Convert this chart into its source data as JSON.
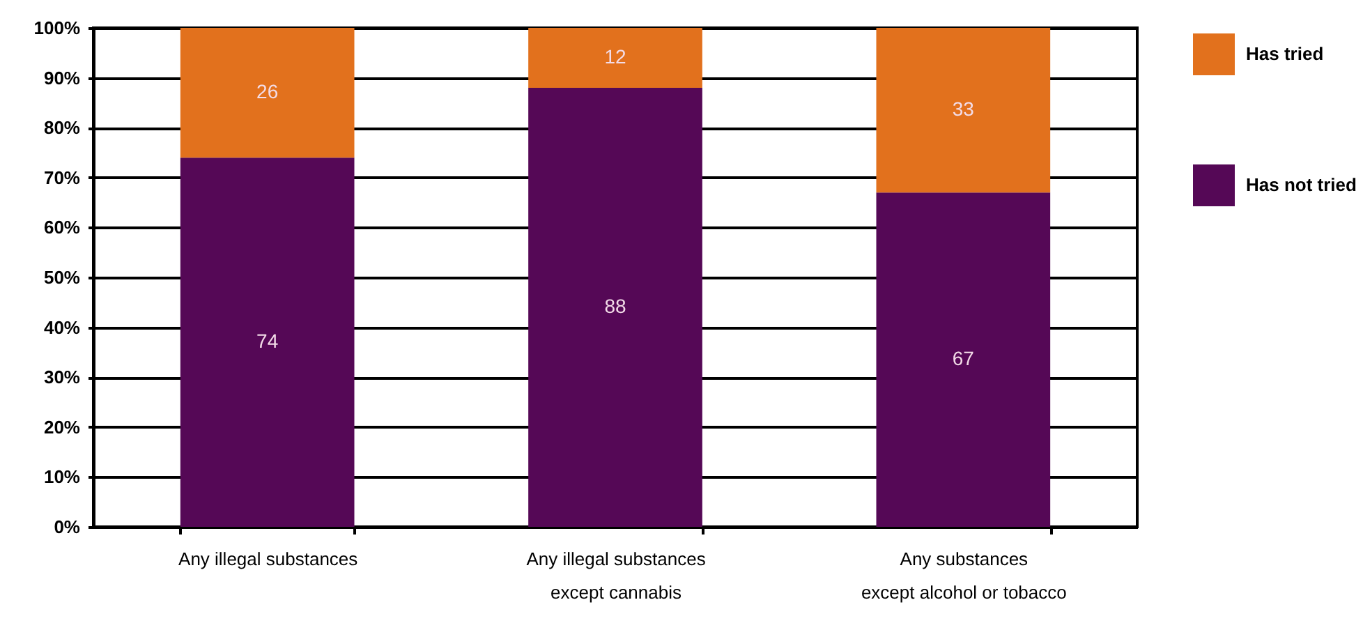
{
  "chart_data": {
    "type": "bar",
    "stacked": true,
    "categories": [
      "Any illegal substances",
      "Any illegal substances\nexcept cannabis",
      "Any substances\nexcept alcohol or tobacco"
    ],
    "series": [
      {
        "name": "Has not tried",
        "color": "#550856",
        "values": [
          74,
          88,
          67
        ]
      },
      {
        "name": "Has tried",
        "color": "#e2711d",
        "values": [
          26,
          12,
          33
        ]
      }
    ],
    "ylim": [
      0,
      100
    ],
    "yticks": [
      {
        "value": 0,
        "label": "0%"
      },
      {
        "value": 10,
        "label": "10%"
      },
      {
        "value": 20,
        "label": "20%"
      },
      {
        "value": 30,
        "label": "30%"
      },
      {
        "value": 40,
        "label": "40%"
      },
      {
        "value": 50,
        "label": "50%"
      },
      {
        "value": 60,
        "label": "60%"
      },
      {
        "value": 70,
        "label": "70%"
      },
      {
        "value": 80,
        "label": "80%"
      },
      {
        "value": 90,
        "label": "90%"
      },
      {
        "value": 100,
        "label": "100%"
      }
    ],
    "grid": "y",
    "legend": "top right",
    "data_labels": true
  }
}
